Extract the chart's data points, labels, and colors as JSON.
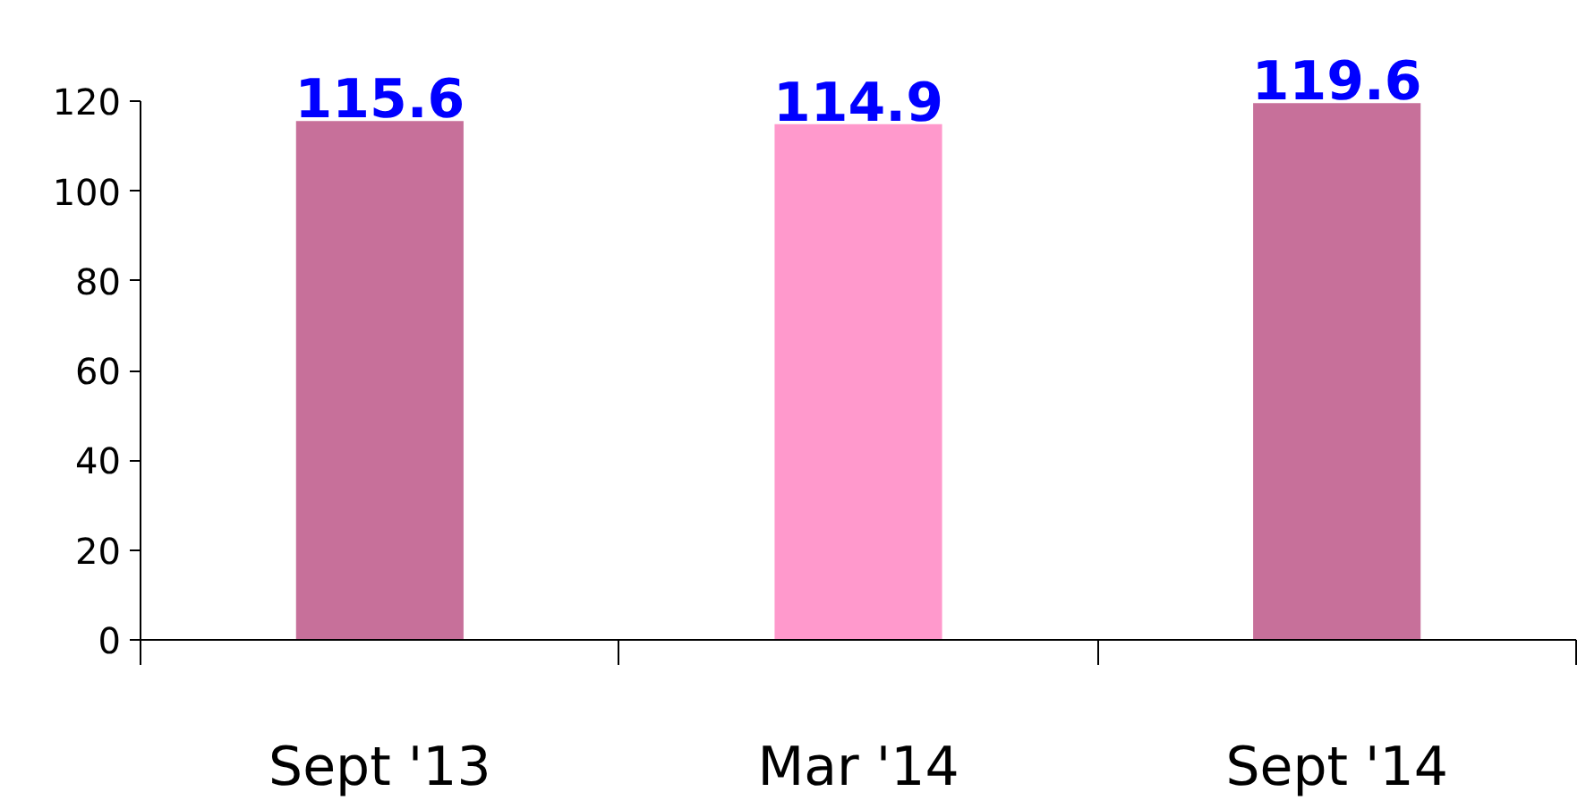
{
  "chart_data": {
    "type": "bar",
    "categories": [
      "Sept '13",
      "Mar '14",
      "Sept '14"
    ],
    "values": [
      115.6,
      114.9,
      119.6
    ],
    "colors": [
      "#c7709a",
      "#ff99cc",
      "#c7709a"
    ],
    "ylim": [
      0,
      120
    ],
    "yticks": [
      0,
      20,
      40,
      60,
      80,
      100,
      120
    ],
    "data_labels": true,
    "grid": false
  }
}
